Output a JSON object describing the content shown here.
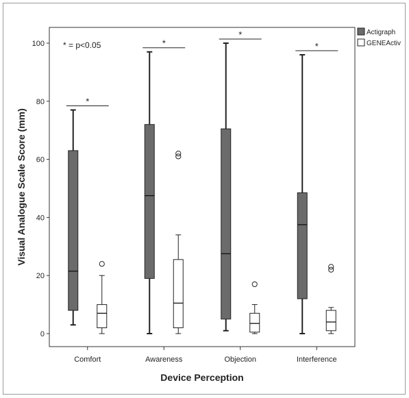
{
  "chart_data": {
    "type": "boxplot",
    "xlabel": "Device Perception",
    "ylabel": "Visual Analogue Scale Score (mm)",
    "ylim": [
      0,
      100
    ],
    "yticks": [
      0,
      20,
      40,
      60,
      80,
      100
    ],
    "categories": [
      "Comfort",
      "Awareness",
      "Objection",
      "Interference"
    ],
    "annotation": "* = p<0.05",
    "significance_marker": "*",
    "legend_position": "top-right",
    "series": [
      {
        "name": "Actigraph",
        "color": "#6b6b6b",
        "boxes": [
          {
            "whisker_low": 3,
            "q1": 8,
            "median": 21.5,
            "q3": 63,
            "whisker_high": 77,
            "outliers": []
          },
          {
            "whisker_low": 0,
            "q1": 19,
            "median": 47.5,
            "q3": 72,
            "whisker_high": 97,
            "outliers": []
          },
          {
            "whisker_low": 1,
            "q1": 5,
            "median": 27.5,
            "q3": 70.5,
            "whisker_high": 100,
            "outliers": []
          },
          {
            "whisker_low": 0,
            "q1": 12,
            "median": 37.5,
            "q3": 48.5,
            "whisker_high": 96,
            "outliers": []
          }
        ]
      },
      {
        "name": "GENEActiv",
        "color": "#ffffff",
        "boxes": [
          {
            "whisker_low": 0,
            "q1": 2,
            "median": 7,
            "q3": 10,
            "whisker_high": 20,
            "outliers": [
              24
            ]
          },
          {
            "whisker_low": 0,
            "q1": 2,
            "median": 10.5,
            "q3": 25.5,
            "whisker_high": 34,
            "outliers": [
              61,
              62
            ]
          },
          {
            "whisker_low": 0,
            "q1": 0.5,
            "median": 3.5,
            "q3": 7,
            "whisker_high": 10,
            "outliers": [
              17
            ]
          },
          {
            "whisker_low": 0,
            "q1": 1,
            "median": 4,
            "q3": 8,
            "whisker_high": 9,
            "outliers": [
              22,
              23
            ]
          }
        ]
      }
    ]
  }
}
